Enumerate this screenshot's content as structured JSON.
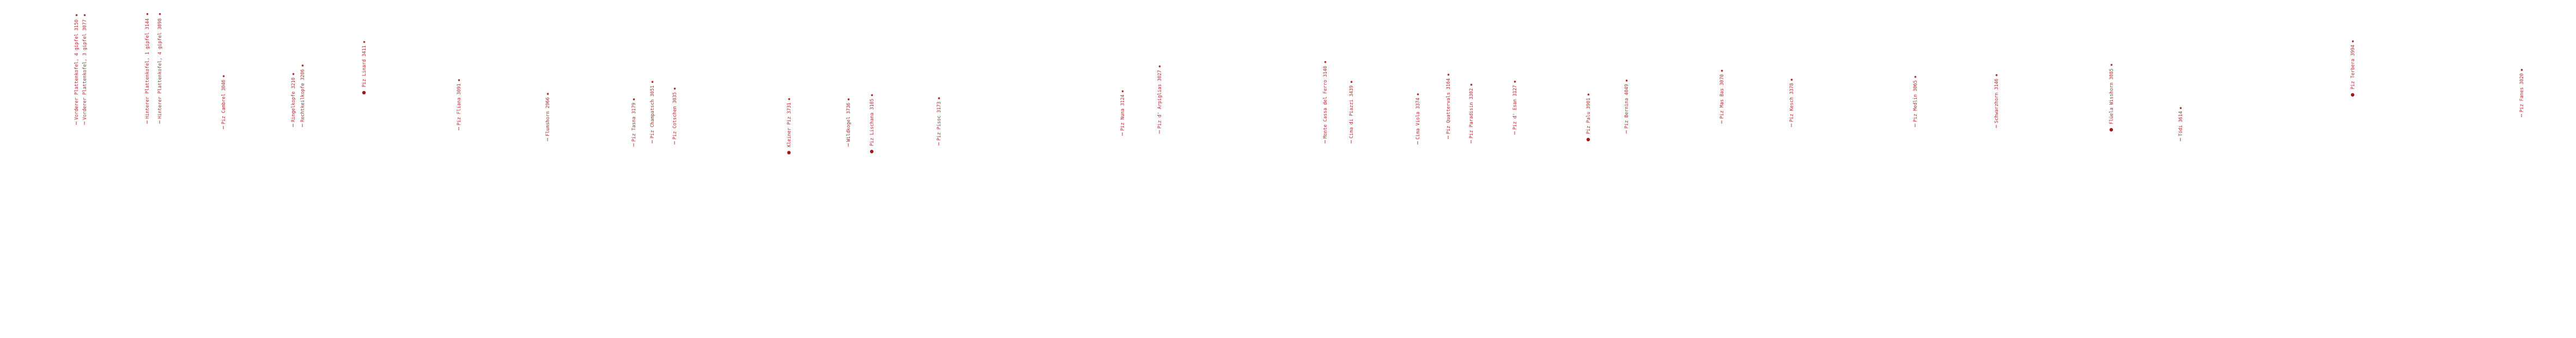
{
  "peaks": [
    {
      "name": "Vorderer Plattenkofel, 4 gipfel",
      "elevation": "3150",
      "marker": "tick"
    },
    {
      "name": "Vorderer Plattenkofel, 3 gipfel",
      "elevation": "3077",
      "marker": "tick"
    },
    {
      "name": "Hinterer Plattenkofel, 1 gipfel",
      "elevation": "3144",
      "marker": "tick"
    },
    {
      "name": "Hinterer Plattenkofel, 4 gipfel",
      "elevation": "3098",
      "marker": "tick"
    },
    {
      "name": "Piz Cambrel",
      "elevation": "3046",
      "marker": "tick"
    },
    {
      "name": "Ringelkopfe",
      "elevation": "3210",
      "marker": "tick"
    },
    {
      "name": "Rechtkeilkopfe",
      "elevation": "3206",
      "marker": "tick"
    },
    {
      "name": "Piz Linard",
      "elevation": "3411",
      "marker": "dot"
    },
    {
      "name": "Piz Fliana",
      "elevation": "3091",
      "marker": "tick"
    },
    {
      "name": "Flumshorn",
      "elevation": "2966",
      "marker": "tick"
    },
    {
      "name": "Piz Tasna",
      "elevation": "3179",
      "marker": "tick"
    },
    {
      "name": "Piz Champatsch",
      "elevation": "3051",
      "marker": "tick"
    },
    {
      "name": "Piz Cotschen",
      "elevation": "3035",
      "marker": "tick"
    },
    {
      "name": "Kleiner Piz",
      "elevation": "3731",
      "marker": "dot"
    },
    {
      "name": "Wildkogel",
      "elevation": "3736",
      "marker": "tick"
    },
    {
      "name": "Piz Lischana",
      "elevation": "3105",
      "marker": "dot"
    },
    {
      "name": "Piz Pisoc",
      "elevation": "3173",
      "marker": "tick"
    },
    {
      "name": "Piz Nuna",
      "elevation": "3124",
      "marker": "tick"
    },
    {
      "name": "Piz d' Arpiglias",
      "elevation": "3027",
      "marker": "tick"
    },
    {
      "name": "Monte Cassa del Ferro",
      "elevation": "3140",
      "marker": "tick"
    },
    {
      "name": "Cima di Piazzi",
      "elevation": "3439",
      "marker": "tick"
    },
    {
      "name": "Cima Viola",
      "elevation": "3374",
      "marker": "tick"
    },
    {
      "name": "Piz Quattervals",
      "elevation": "3164",
      "marker": "tick"
    },
    {
      "name": "Piz Paradisin",
      "elevation": "3302",
      "marker": "tick"
    },
    {
      "name": "Piz d' Esan",
      "elevation": "3127",
      "marker": "tick"
    },
    {
      "name": "Piz Palu",
      "elevation": "3901",
      "marker": "dot"
    },
    {
      "name": "Piz Bernina",
      "elevation": "4049",
      "marker": "tick"
    },
    {
      "name": "Piz Mas Bas",
      "elevation": "3070",
      "marker": "tick"
    },
    {
      "name": "Piz Kesch",
      "elevation": "3378",
      "marker": "tick"
    },
    {
      "name": "Piz Medlin",
      "elevation": "3065",
      "marker": "tick"
    },
    {
      "name": "Schwarzhorn",
      "elevation": "3146",
      "marker": "tick"
    },
    {
      "name": "Flüela Wisshorn",
      "elevation": "3085",
      "marker": "dot"
    },
    {
      "name": "Tödi",
      "elevation": "3614",
      "marker": "tick"
    },
    {
      "name": "Piz Terbera",
      "elevation": "3994",
      "marker": "dot"
    },
    {
      "name": "Piz Fanes",
      "elevation": "3020",
      "marker": "tick"
    }
  ]
}
